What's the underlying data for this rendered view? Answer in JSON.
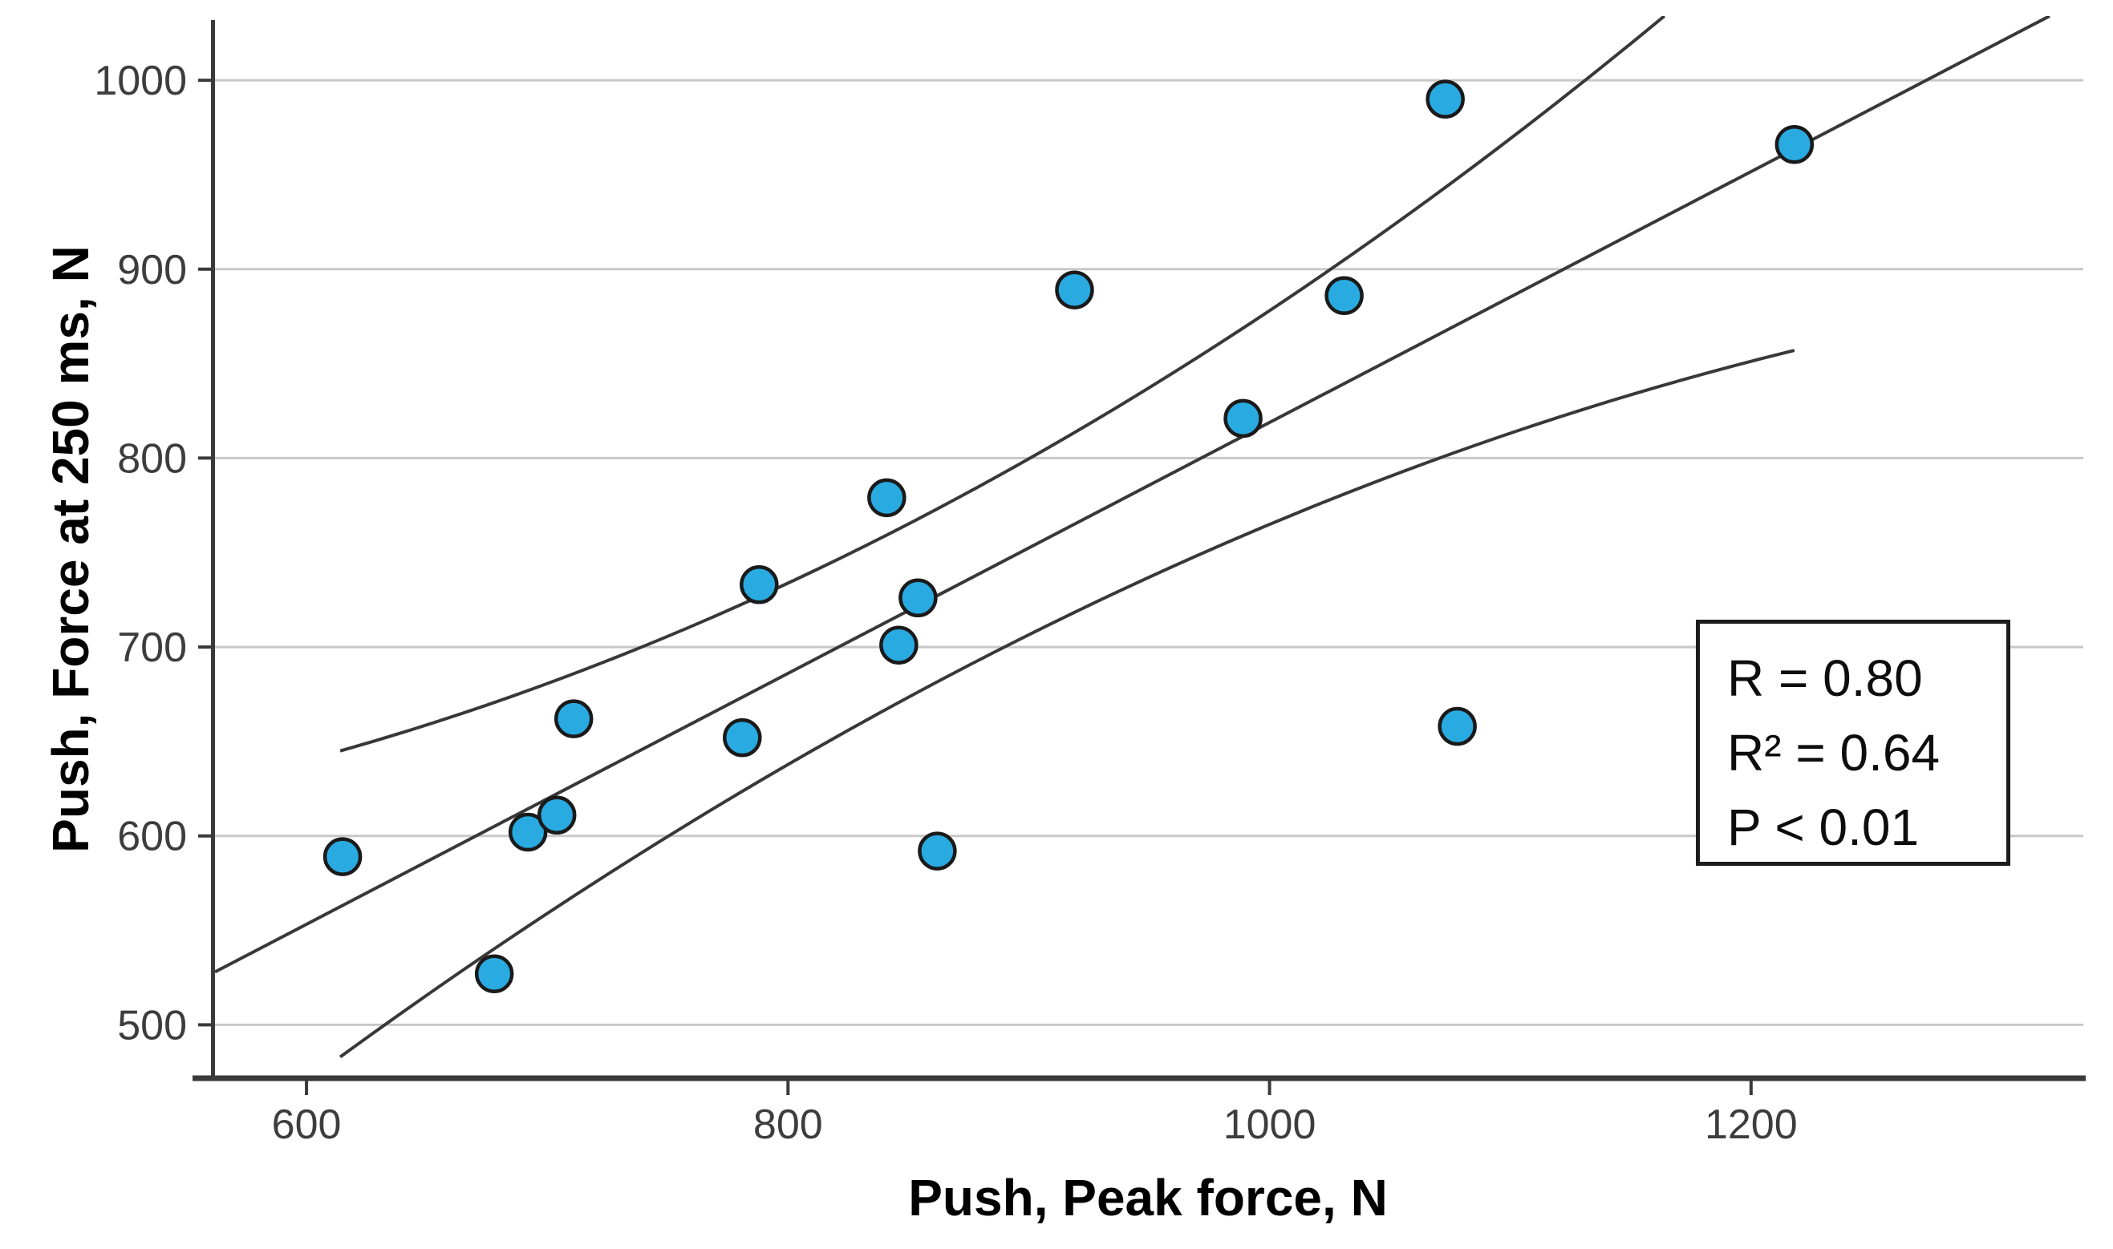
{
  "chart_data": {
    "type": "scatter",
    "xlabel": "Push, Peak force, N",
    "ylabel": "Push, Force at 250 ms, N",
    "xlim": [
      561,
      1338
    ],
    "ylim": [
      473,
      1034
    ],
    "x_ticks": [
      "600",
      "800",
      "1000",
      "1200"
    ],
    "x_tick_values": [
      600,
      800,
      1000,
      1200
    ],
    "y_ticks": [
      "500",
      "600",
      "700",
      "800",
      "900",
      "1000"
    ],
    "y_tick_values": [
      500,
      600,
      700,
      800,
      900,
      1000
    ],
    "grid": "horizontal gridlines only",
    "legend": "none",
    "points": [
      {
        "x": 615,
        "y": 589
      },
      {
        "x": 678,
        "y": 527
      },
      {
        "x": 692,
        "y": 602
      },
      {
        "x": 704,
        "y": 611
      },
      {
        "x": 711,
        "y": 662
      },
      {
        "x": 781,
        "y": 652
      },
      {
        "x": 788,
        "y": 733
      },
      {
        "x": 841,
        "y": 779
      },
      {
        "x": 846,
        "y": 701
      },
      {
        "x": 854,
        "y": 726
      },
      {
        "x": 862,
        "y": 592
      },
      {
        "x": 919,
        "y": 889
      },
      {
        "x": 989,
        "y": 821
      },
      {
        "x": 1031,
        "y": 886
      },
      {
        "x": 1073,
        "y": 990
      },
      {
        "x": 1078,
        "y": 658
      },
      {
        "x": 1218,
        "y": 966
      }
    ],
    "fit_line": {
      "x1": 562,
      "y1": 528,
      "x2": 1324,
      "y2": 1034
    },
    "ci_upper": {
      "p0": [
        614,
        645
      ],
      "c": [
        889,
        744
      ],
      "p1": [
        1164,
        1034
      ]
    },
    "ci_lower": {
      "p0": [
        614,
        483
      ],
      "c": [
        916,
        763
      ],
      "p1": [
        1218,
        857
      ]
    }
  },
  "annotation": {
    "line1": "R = 0.80",
    "line2": "R² = 0.64",
    "line3": "P < 0.01"
  },
  "colors": {
    "point_fill": "#29ABE2",
    "point_stroke": "#1a1a1a",
    "grid": "#c8c8c8",
    "axis": "#3a3a3a",
    "curve": "#383838",
    "tick_label": "#3d3d3d"
  }
}
